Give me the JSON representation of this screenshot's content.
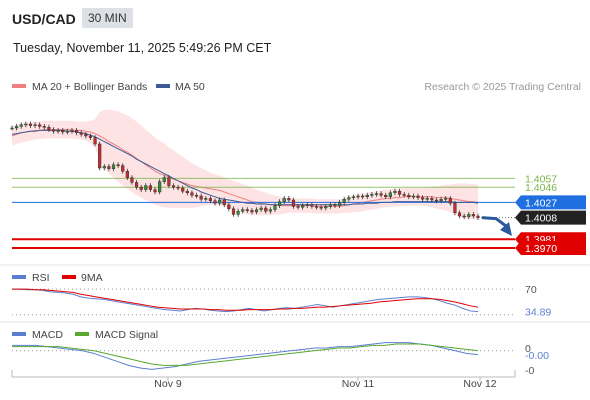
{
  "header": {
    "symbol": "USD/CAD",
    "timeframe": "30 MIN",
    "timestamp": "Tuesday, November 11, 2025 5:49:26 PM CET"
  },
  "legend": {
    "bb_label": "MA 20 + Bollinger Bands",
    "ma50_label": "MA 50",
    "credit": "Research © 2025 Trading Central"
  },
  "colors": {
    "bb_line": "#f08080",
    "bb_fill": "#fde3e3",
    "ma50": "#3c5a96",
    "support": "#e00000",
    "resistance": "#7ab648",
    "pivot": "#1f6fe0",
    "last_price_bg": "#222222",
    "arrow": "#2a5a9a",
    "rsi": "#5b7fd0",
    "rsi_ma": "#e00000",
    "macd": "#5b7fd0",
    "macd_signal": "#58a832"
  },
  "chart_data": [
    {
      "type": "candlestick",
      "title": "USD/CAD",
      "ylim": [
        1.3955,
        1.4155
      ],
      "price_levels": [
        {
          "label": "1.4057",
          "value": 1.4057,
          "kind": "resistance"
        },
        {
          "label": "1.4046",
          "value": 1.4046,
          "kind": "resistance"
        },
        {
          "label": "1.4027",
          "value": 1.4027,
          "kind": "pivot"
        },
        {
          "label": "1.4008",
          "value": 1.4008,
          "kind": "last"
        },
        {
          "label": "1.3981",
          "value": 1.3981,
          "kind": "support"
        },
        {
          "label": "1.3970",
          "value": 1.397,
          "kind": "support"
        }
      ],
      "x_ticks": [
        "Nov 9",
        "Nov 11",
        "Nov 12"
      ],
      "close": [
        1.412,
        1.4122,
        1.4124,
        1.4125,
        1.4123,
        1.4124,
        1.4122,
        1.4121,
        1.4118,
        1.4116,
        1.4117,
        1.4115,
        1.4116,
        1.4117,
        1.4114,
        1.4112,
        1.411,
        1.4108,
        1.41,
        1.407,
        1.4072,
        1.4069,
        1.4074,
        1.4073,
        1.4066,
        1.4058,
        1.4052,
        1.4046,
        1.4043,
        1.4048,
        1.4043,
        1.404,
        1.4053,
        1.4058,
        1.4048,
        1.4046,
        1.4045,
        1.4041,
        1.4039,
        1.4036,
        1.4035,
        1.4031,
        1.4032,
        1.4029,
        1.4026,
        1.403,
        1.4024,
        1.4019,
        1.4012,
        1.4016,
        1.4018,
        1.4017,
        1.4015,
        1.4018,
        1.402,
        1.4016,
        1.4018,
        1.4023,
        1.4028,
        1.4032,
        1.403,
        1.4022,
        1.4021,
        1.4023,
        1.4024,
        1.4022,
        1.4021,
        1.402,
        1.4022,
        1.4024,
        1.4023,
        1.4027,
        1.4031,
        1.4033,
        1.4034,
        1.4035,
        1.4034,
        1.4036,
        1.4037,
        1.4038,
        1.4036,
        1.4034,
        1.4039,
        1.4041,
        1.4037,
        1.4036,
        1.4034,
        1.4035,
        1.4033,
        1.4031,
        1.4032,
        1.403,
        1.4029,
        1.4031,
        1.4032,
        1.4026,
        1.4014,
        1.401,
        1.4009,
        1.4012,
        1.401,
        1.4008
      ],
      "ma20": [
        1.411,
        1.4112,
        1.4114,
        1.4115,
        1.4116,
        1.4117,
        1.4117,
        1.4118,
        1.4118,
        1.4118,
        1.4118,
        1.4118,
        1.4118,
        1.4118,
        1.4117,
        1.4117,
        1.4116,
        1.4115,
        1.4113,
        1.411,
        1.4107,
        1.4103,
        1.41,
        1.4097,
        1.4093,
        1.409,
        1.4086,
        1.4082,
        1.4078,
        1.4074,
        1.407,
        1.4066,
        1.4063,
        1.4061,
        1.4058,
        1.4056,
        1.4054,
        1.4052,
        1.405,
        1.4048,
        1.4047,
        1.4046,
        1.4045,
        1.4044,
        1.4043,
        1.4042,
        1.404,
        1.4038,
        1.4036,
        1.4034,
        1.4032,
        1.403,
        1.4028,
        1.4027,
        1.4026,
        1.4025,
        1.4024,
        1.4024,
        1.4023,
        1.4023,
        1.4023,
        1.4023,
        1.4023,
        1.4023,
        1.4023,
        1.4023,
        1.4022,
        1.4022,
        1.4022,
        1.4022,
        1.4022,
        1.4022,
        1.4023,
        1.4024,
        1.4025,
        1.4026,
        1.4027,
        1.4028,
        1.4029,
        1.403,
        1.4031,
        1.4032,
        1.4032,
        1.4033,
        1.4033,
        1.4034,
        1.4034,
        1.4034,
        1.4034,
        1.4034,
        1.4034,
        1.4034,
        1.4033,
        1.4033,
        1.4033,
        1.4032,
        1.4031,
        1.403,
        1.4029,
        1.4028,
        1.4028,
        1.4027
      ],
      "bb_width": [
        0.0012,
        0.0012,
        0.0012,
        0.0012,
        0.0012,
        0.0011,
        0.0011,
        0.0011,
        0.0011,
        0.0011,
        0.0011,
        0.0011,
        0.0011,
        0.0011,
        0.0011,
        0.0011,
        0.0012,
        0.0014,
        0.0018,
        0.003,
        0.0036,
        0.004,
        0.0042,
        0.0044,
        0.0045,
        0.0046,
        0.0046,
        0.0046,
        0.0045,
        0.0044,
        0.0043,
        0.0042,
        0.0041,
        0.004,
        0.0038,
        0.0036,
        0.0034,
        0.0032,
        0.003,
        0.0028,
        0.0026,
        0.0024,
        0.0022,
        0.002,
        0.0019,
        0.0018,
        0.0018,
        0.0018,
        0.0018,
        0.0018,
        0.0018,
        0.0018,
        0.0017,
        0.0016,
        0.0015,
        0.0014,
        0.0013,
        0.0012,
        0.0011,
        0.001,
        0.0009,
        0.0009,
        0.0009,
        0.0009,
        0.0009,
        0.0009,
        0.0009,
        0.0009,
        0.0009,
        0.0009,
        0.0009,
        0.0009,
        0.0009,
        0.001,
        0.001,
        0.0011,
        0.0011,
        0.0011,
        0.0011,
        0.0011,
        0.0011,
        0.0011,
        0.0011,
        0.0011,
        0.0011,
        0.0011,
        0.0011,
        0.0011,
        0.0011,
        0.0011,
        0.0012,
        0.0013,
        0.0014,
        0.0015,
        0.0016,
        0.0017,
        0.0019,
        0.0021,
        0.0022,
        0.0022,
        0.0022,
        0.0022
      ],
      "ma50": [
        1.4112,
        1.4113,
        1.4114,
        1.4115,
        1.4116,
        1.4116,
        1.4117,
        1.4117,
        1.4117,
        1.4117,
        1.4117,
        1.4117,
        1.4116,
        1.4116,
        1.4115,
        1.4114,
        1.4113,
        1.4111,
        1.4109,
        1.4106,
        1.4103,
        1.41,
        1.4097,
        1.4094,
        1.4091,
        1.4088,
        1.4085,
        1.4081,
        1.4078,
        1.4075,
        1.4072,
        1.4069,
        1.4066,
        1.4063,
        1.406,
        1.4057,
        1.4054,
        1.4051,
        1.4048,
        1.4045,
        1.4043,
        1.404,
        1.4038,
        1.4036,
        1.4034,
        1.4032,
        1.4031,
        1.403,
        1.4029,
        1.4028,
        1.4027,
        1.4026,
        1.4026,
        1.4025,
        1.4025,
        1.4025,
        1.4024,
        1.4024,
        1.4024,
        1.4024,
        1.4024,
        1.4024,
        1.4024,
        1.4024,
        1.4024,
        1.4024,
        1.4024,
        1.4024,
        1.4024,
        1.4024,
        1.4024,
        1.4024,
        1.4024,
        1.4024,
        1.4025,
        1.4025,
        1.4025,
        1.4026,
        1.4026,
        1.4026,
        1.4027,
        1.4027,
        1.4027,
        1.4028,
        1.4028,
        1.4028,
        1.4028,
        1.4028,
        1.4028,
        1.4028,
        1.4028,
        1.4028,
        1.4028,
        1.4028,
        1.4028,
        1.4028,
        1.4027,
        1.4027,
        1.4027,
        1.4027,
        1.4027,
        1.4026
      ],
      "projection": [
        [
          1.4008,
          1.399
        ]
      ]
    },
    {
      "type": "line",
      "title": "RSI",
      "series": [
        {
          "name": "RSI",
          "values": [
            70,
            70,
            69,
            69,
            68,
            66,
            65,
            64,
            62,
            58,
            56,
            55,
            54,
            52,
            50,
            48,
            46,
            44,
            42,
            40,
            38,
            37,
            36,
            38,
            40,
            39,
            37,
            36,
            35,
            36,
            38,
            40,
            38,
            36,
            38,
            40,
            41,
            40,
            42,
            44,
            46,
            44,
            42,
            44,
            46,
            48,
            50,
            52,
            54,
            55,
            56,
            57,
            58,
            58,
            57,
            55,
            52,
            48,
            45,
            40,
            36,
            34.89
          ]
        },
        {
          "name": "9MA",
          "values": [
            70,
            70,
            70,
            69,
            69,
            68,
            67,
            66,
            65,
            62,
            60,
            58,
            56,
            54,
            52,
            50,
            48,
            46,
            44,
            42,
            41,
            40,
            39,
            39,
            39,
            39,
            38,
            38,
            37,
            37,
            37,
            38,
            38,
            38,
            38,
            39,
            39,
            40,
            40,
            41,
            42,
            42,
            43,
            44,
            45,
            46,
            47,
            48,
            50,
            51,
            52,
            53,
            54,
            55,
            55,
            55,
            54,
            52,
            50,
            47,
            44,
            42
          ]
        }
      ],
      "y_ticks": [
        "70",
        "34.89"
      ],
      "ylim": [
        25,
        78
      ]
    },
    {
      "type": "line",
      "title": "MACD",
      "series": [
        {
          "name": "MACD",
          "values": [
            0.0004,
            0.0004,
            0.0004,
            0.0003,
            0.0002,
            0.0001,
            0.0,
            -0.0002,
            -0.0005,
            -0.0008,
            -0.0011,
            -0.0013,
            -0.0014,
            -0.0013,
            -0.0012,
            -0.001,
            -0.0008,
            -0.0007,
            -0.0006,
            -0.0005,
            -0.0004,
            -0.0003,
            -0.0002,
            -0.0001,
            0.0,
            0.0001,
            0.0002,
            0.0002,
            0.0003,
            0.0003,
            0.0004,
            0.0005,
            0.0006,
            0.0006,
            0.0006,
            0.0005,
            0.0004,
            0.0002,
            0.0,
            -0.0002,
            -0.0003
          ]
        },
        {
          "name": "MACD Signal",
          "values": [
            0.0003,
            0.0003,
            0.0003,
            0.0003,
            0.0003,
            0.0002,
            0.0001,
            0.0,
            -0.0002,
            -0.0004,
            -0.0006,
            -0.0008,
            -0.001,
            -0.0011,
            -0.0011,
            -0.0011,
            -0.001,
            -0.0009,
            -0.0008,
            -0.0007,
            -0.0006,
            -0.0005,
            -0.0004,
            -0.0003,
            -0.0002,
            -0.0001,
            0.0,
            0.0001,
            0.0002,
            0.0002,
            0.0003,
            0.0004,
            0.0004,
            0.0005,
            0.0005,
            0.0005,
            0.0004,
            0.0003,
            0.0002,
            0.0001,
            0.0
          ]
        }
      ],
      "y_ticks": [
        "0",
        "-0.00",
        "-0"
      ],
      "ylim": [
        -0.0016,
        0.0008
      ]
    }
  ]
}
